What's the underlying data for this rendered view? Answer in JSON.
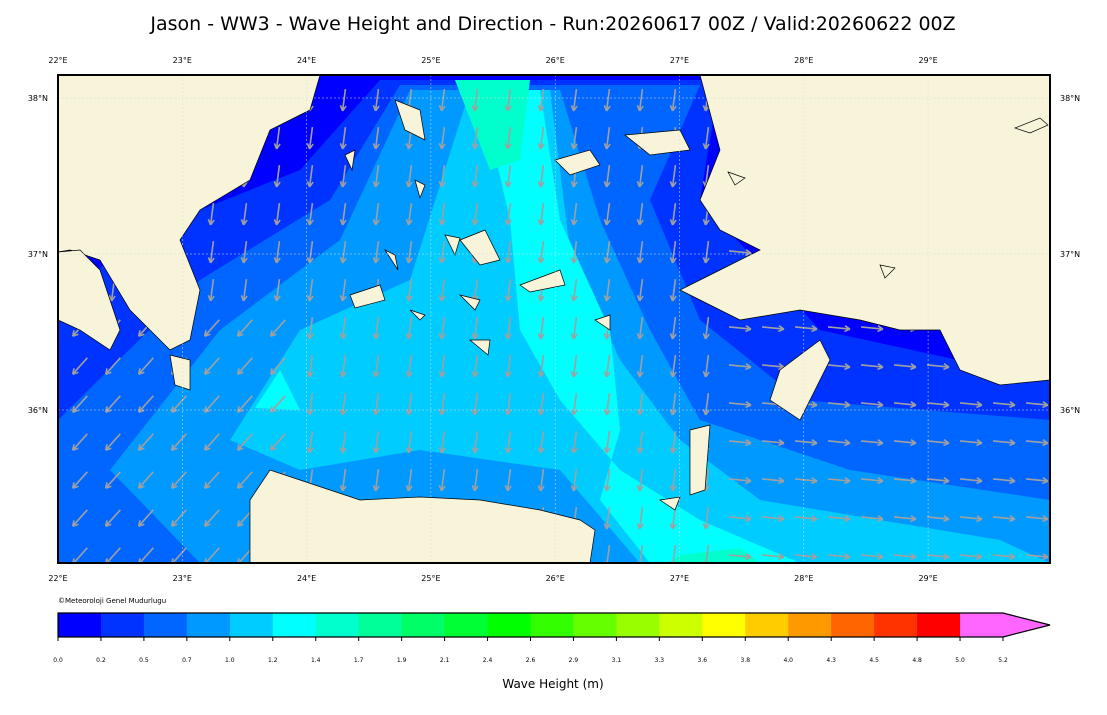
{
  "header": {
    "title": "Jason - WW3 - Wave Height and Direction - Run:20260617 00Z / Valid:20260622 00Z"
  },
  "map": {
    "lon_labels": [
      "22°E",
      "23°E",
      "24°E",
      "25°E",
      "26°E",
      "27°E",
      "28°E",
      "29°E"
    ],
    "lat_labels": [
      "38°N",
      "37°N",
      "36°N"
    ],
    "credit": "©Meteoroloji Genel Mudurlugu"
  },
  "colorbar": {
    "label": "Wave Height (m)",
    "colors": [
      "#0000ff",
      "#0033ff",
      "#0066ff",
      "#0099ff",
      "#00ccff",
      "#00ffff",
      "#00ffcc",
      "#00ff99",
      "#00ff66",
      "#00ff33",
      "#00ff00",
      "#33ff00",
      "#66ff00",
      "#99ff00",
      "#ccff00",
      "#ffff00",
      "#ffcc00",
      "#ff9900",
      "#ff6600",
      "#ff3300",
      "#ff0000",
      "#ff66ff"
    ],
    "ticks": [
      {
        "value": 0,
        "label": "0.0"
      },
      0.2,
      0.5,
      0.7,
      {
        "value": 1,
        "label": "1.0"
      },
      1.2,
      1.4,
      1.7,
      1.9,
      2.1,
      2.4,
      2.6,
      2.9,
      3.1,
      3.3,
      3.6,
      3.8,
      {
        "value": 4,
        "label": "4.0"
      },
      4.3,
      4.5,
      4.8,
      {
        "value": 5,
        "label": "5.0"
      },
      5.2
    ]
  }
}
